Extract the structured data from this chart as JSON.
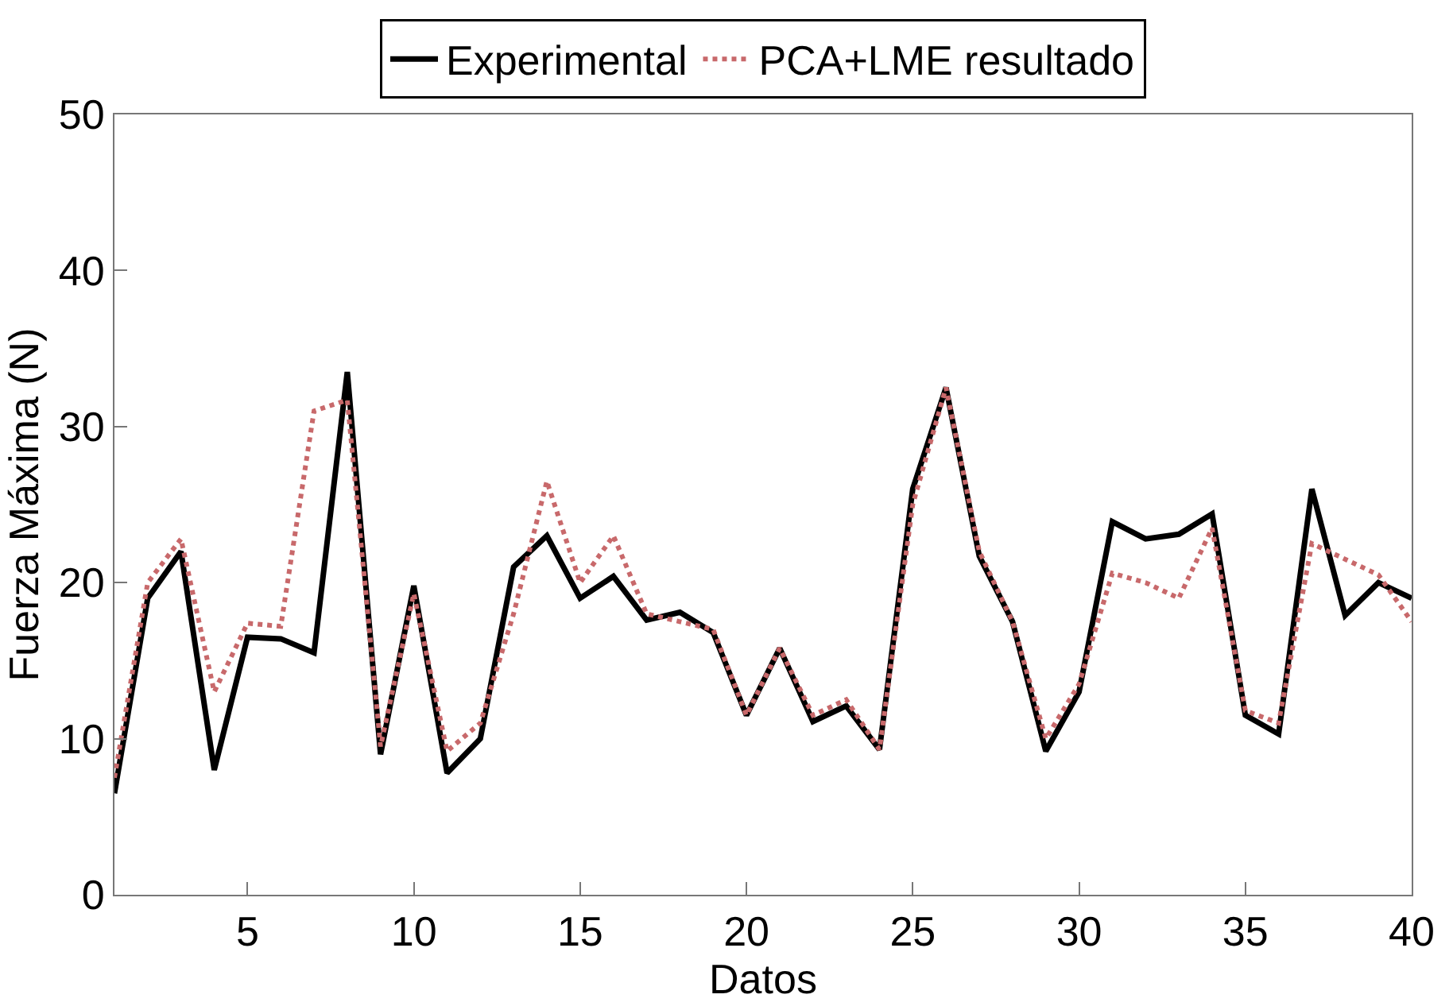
{
  "chart_data": {
    "type": "line",
    "xlabel": "Datos",
    "ylabel": "Fuerza Máxima (N)",
    "x": [
      1,
      2,
      3,
      4,
      5,
      6,
      7,
      8,
      9,
      10,
      11,
      12,
      13,
      14,
      15,
      16,
      17,
      18,
      19,
      20,
      21,
      22,
      23,
      24,
      25,
      26,
      27,
      28,
      29,
      30,
      31,
      32,
      33,
      34,
      35,
      36,
      37,
      38,
      39,
      40
    ],
    "series": [
      {
        "name": "Experimental",
        "color": "#000000",
        "line_style": "solid",
        "values": [
          6.5,
          19,
          22,
          8,
          16.5,
          16.4,
          15.5,
          33.5,
          9,
          19.8,
          7.8,
          10,
          21,
          23,
          19,
          20.4,
          17.6,
          18.1,
          16.8,
          11.5,
          15.8,
          11.1,
          12.1,
          9.3,
          26,
          32.5,
          21.7,
          17.5,
          9.2,
          13,
          23.9,
          22.8,
          23.1,
          24.4,
          11.5,
          10.3,
          26,
          17.9,
          20,
          19
        ]
      },
      {
        "name": "PCA+LME resultado",
        "color": "#c8696b",
        "line_style": "dotted",
        "values": [
          7.5,
          20,
          22.8,
          13,
          17.4,
          17.2,
          31,
          31.7,
          9.5,
          19.3,
          9.2,
          11,
          18,
          26.5,
          20,
          23,
          18,
          17.5,
          17,
          11.5,
          15.8,
          11.5,
          12.5,
          9.3,
          25,
          32.5,
          22,
          17.5,
          10,
          13.5,
          20.6,
          20,
          19,
          23.5,
          11.8,
          11,
          22.5,
          21.5,
          20.5,
          17.5
        ]
      }
    ],
    "xlim": [
      1,
      40
    ],
    "xticks": [
      5,
      10,
      15,
      20,
      25,
      30,
      35,
      40
    ],
    "ylim": [
      0,
      50
    ],
    "yticks": [
      0,
      10,
      20,
      30,
      40,
      50
    ],
    "legend": "top",
    "marker": "none"
  }
}
